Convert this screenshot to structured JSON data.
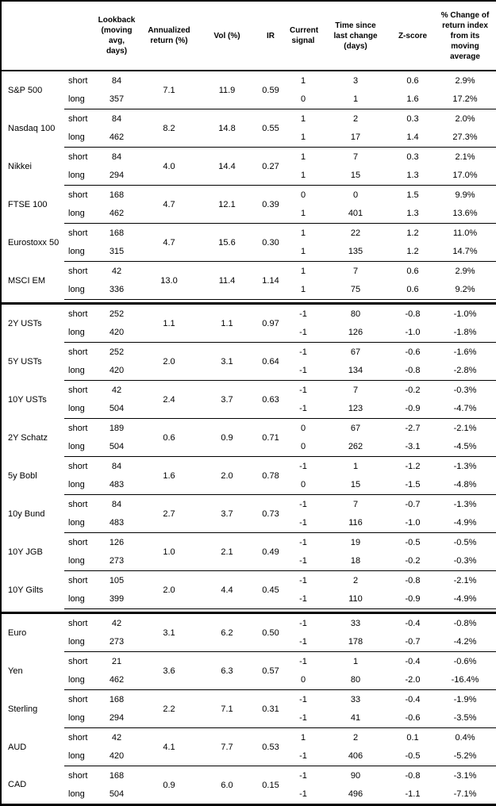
{
  "chart_data": {
    "type": "table",
    "columns": [
      "",
      "",
      "Lookback (moving avg, days)",
      "Annualized return (%)",
      "Vol (%)",
      "IR",
      "Current signal",
      "Time since last change (days)",
      "Z-score",
      "% Change of return index from its moving average"
    ],
    "sections": [
      {
        "id": "equities",
        "assets": [
          {
            "name": "S&P 500",
            "annualized_return": "7.1",
            "vol": "11.9",
            "ir": "0.59",
            "legs": [
              {
                "label": "short",
                "lookback": "84",
                "signal": "1",
                "time_since": "3",
                "z_score": "0.6",
                "pct_change": "2.9%"
              },
              {
                "label": "long",
                "lookback": "357",
                "signal": "0",
                "time_since": "1",
                "z_score": "1.6",
                "pct_change": "17.2%"
              }
            ]
          },
          {
            "name": "Nasdaq 100",
            "annualized_return": "8.2",
            "vol": "14.8",
            "ir": "0.55",
            "legs": [
              {
                "label": "short",
                "lookback": "84",
                "signal": "1",
                "time_since": "2",
                "z_score": "0.3",
                "pct_change": "2.0%"
              },
              {
                "label": "long",
                "lookback": "462",
                "signal": "1",
                "time_since": "17",
                "z_score": "1.4",
                "pct_change": "27.3%"
              }
            ]
          },
          {
            "name": "Nikkei",
            "annualized_return": "4.0",
            "vol": "14.4",
            "ir": "0.27",
            "legs": [
              {
                "label": "short",
                "lookback": "84",
                "signal": "1",
                "time_since": "7",
                "z_score": "0.3",
                "pct_change": "2.1%"
              },
              {
                "label": "long",
                "lookback": "294",
                "signal": "1",
                "time_since": "15",
                "z_score": "1.3",
                "pct_change": "17.0%"
              }
            ]
          },
          {
            "name": "FTSE 100",
            "annualized_return": "4.7",
            "vol": "12.1",
            "ir": "0.39",
            "legs": [
              {
                "label": "short",
                "lookback": "168",
                "signal": "0",
                "time_since": "0",
                "z_score": "1.5",
                "pct_change": "9.9%"
              },
              {
                "label": "long",
                "lookback": "462",
                "signal": "1",
                "time_since": "401",
                "z_score": "1.3",
                "pct_change": "13.6%"
              }
            ]
          },
          {
            "name": "Eurostoxx 50",
            "annualized_return": "4.7",
            "vol": "15.6",
            "ir": "0.30",
            "legs": [
              {
                "label": "short",
                "lookback": "168",
                "signal": "1",
                "time_since": "22",
                "z_score": "1.2",
                "pct_change": "11.0%"
              },
              {
                "label": "long",
                "lookback": "315",
                "signal": "1",
                "time_since": "135",
                "z_score": "1.2",
                "pct_change": "14.7%"
              }
            ]
          },
          {
            "name": "MSCI EM",
            "annualized_return": "13.0",
            "vol": "11.4",
            "ir": "1.14",
            "legs": [
              {
                "label": "short",
                "lookback": "42",
                "signal": "1",
                "time_since": "7",
                "z_score": "0.6",
                "pct_change": "2.9%"
              },
              {
                "label": "long",
                "lookback": "336",
                "signal": "1",
                "time_since": "75",
                "z_score": "0.6",
                "pct_change": "9.2%"
              }
            ]
          }
        ]
      },
      {
        "id": "rates",
        "assets": [
          {
            "name": "2Y USTs",
            "annualized_return": "1.1",
            "vol": "1.1",
            "ir": "0.97",
            "legs": [
              {
                "label": "short",
                "lookback": "252",
                "signal": "-1",
                "time_since": "80",
                "z_score": "-0.8",
                "pct_change": "-1.0%"
              },
              {
                "label": "long",
                "lookback": "420",
                "signal": "-1",
                "time_since": "126",
                "z_score": "-1.0",
                "pct_change": "-1.8%"
              }
            ]
          },
          {
            "name": "5Y USTs",
            "annualized_return": "2.0",
            "vol": "3.1",
            "ir": "0.64",
            "legs": [
              {
                "label": "short",
                "lookback": "252",
                "signal": "-1",
                "time_since": "67",
                "z_score": "-0.6",
                "pct_change": "-1.6%"
              },
              {
                "label": "long",
                "lookback": "420",
                "signal": "-1",
                "time_since": "134",
                "z_score": "-0.8",
                "pct_change": "-2.8%"
              }
            ]
          },
          {
            "name": "10Y USTs",
            "annualized_return": "2.4",
            "vol": "3.7",
            "ir": "0.63",
            "legs": [
              {
                "label": "short",
                "lookback": "42",
                "signal": "-1",
                "time_since": "7",
                "z_score": "-0.2",
                "pct_change": "-0.3%"
              },
              {
                "label": "long",
                "lookback": "504",
                "signal": "-1",
                "time_since": "123",
                "z_score": "-0.9",
                "pct_change": "-4.7%"
              }
            ]
          },
          {
            "name": "2Y Schatz",
            "annualized_return": "0.6",
            "vol": "0.9",
            "ir": "0.71",
            "legs": [
              {
                "label": "short",
                "lookback": "189",
                "signal": "0",
                "time_since": "67",
                "z_score": "-2.7",
                "pct_change": "-2.1%"
              },
              {
                "label": "long",
                "lookback": "504",
                "signal": "0",
                "time_since": "262",
                "z_score": "-3.1",
                "pct_change": "-4.5%"
              }
            ]
          },
          {
            "name": "5y Bobl",
            "annualized_return": "1.6",
            "vol": "2.0",
            "ir": "0.78",
            "legs": [
              {
                "label": "short",
                "lookback": "84",
                "signal": "-1",
                "time_since": "1",
                "z_score": "-1.2",
                "pct_change": "-1.3%"
              },
              {
                "label": "long",
                "lookback": "483",
                "signal": "0",
                "time_since": "15",
                "z_score": "-1.5",
                "pct_change": "-4.8%"
              }
            ]
          },
          {
            "name": "10y Bund",
            "annualized_return": "2.7",
            "vol": "3.7",
            "ir": "0.73",
            "legs": [
              {
                "label": "short",
                "lookback": "84",
                "signal": "-1",
                "time_since": "7",
                "z_score": "-0.7",
                "pct_change": "-1.3%"
              },
              {
                "label": "long",
                "lookback": "483",
                "signal": "-1",
                "time_since": "116",
                "z_score": "-1.0",
                "pct_change": "-4.9%"
              }
            ]
          },
          {
            "name": "10Y JGB",
            "annualized_return": "1.0",
            "vol": "2.1",
            "ir": "0.49",
            "legs": [
              {
                "label": "short",
                "lookback": "126",
                "signal": "-1",
                "time_since": "19",
                "z_score": "-0.5",
                "pct_change": "-0.5%"
              },
              {
                "label": "long",
                "lookback": "273",
                "signal": "-1",
                "time_since": "18",
                "z_score": "-0.2",
                "pct_change": "-0.3%"
              }
            ]
          },
          {
            "name": "10Y Gilts",
            "annualized_return": "2.0",
            "vol": "4.4",
            "ir": "0.45",
            "legs": [
              {
                "label": "short",
                "lookback": "105",
                "signal": "-1",
                "time_since": "2",
                "z_score": "-0.8",
                "pct_change": "-2.1%"
              },
              {
                "label": "long",
                "lookback": "399",
                "signal": "-1",
                "time_since": "110",
                "z_score": "-0.9",
                "pct_change": "-4.9%"
              }
            ]
          }
        ]
      },
      {
        "id": "fx",
        "assets": [
          {
            "name": "Euro",
            "annualized_return": "3.1",
            "vol": "6.2",
            "ir": "0.50",
            "legs": [
              {
                "label": "short",
                "lookback": "42",
                "signal": "-1",
                "time_since": "33",
                "z_score": "-0.4",
                "pct_change": "-0.8%"
              },
              {
                "label": "long",
                "lookback": "273",
                "signal": "-1",
                "time_since": "178",
                "z_score": "-0.7",
                "pct_change": "-4.2%"
              }
            ]
          },
          {
            "name": "Yen",
            "annualized_return": "3.6",
            "vol": "6.3",
            "ir": "0.57",
            "legs": [
              {
                "label": "short",
                "lookback": "21",
                "signal": "-1",
                "time_since": "1",
                "z_score": "-0.4",
                "pct_change": "-0.6%"
              },
              {
                "label": "long",
                "lookback": "462",
                "signal": "0",
                "time_since": "80",
                "z_score": "-2.0",
                "pct_change": "-16.4%"
              }
            ]
          },
          {
            "name": "Sterling",
            "annualized_return": "2.2",
            "vol": "7.1",
            "ir": "0.31",
            "legs": [
              {
                "label": "short",
                "lookback": "168",
                "signal": "-1",
                "time_since": "33",
                "z_score": "-0.4",
                "pct_change": "-1.9%"
              },
              {
                "label": "long",
                "lookback": "294",
                "signal": "-1",
                "time_since": "41",
                "z_score": "-0.6",
                "pct_change": "-3.5%"
              }
            ]
          },
          {
            "name": "AUD",
            "annualized_return": "4.1",
            "vol": "7.7",
            "ir": "0.53",
            "legs": [
              {
                "label": "short",
                "lookback": "42",
                "signal": "1",
                "time_since": "2",
                "z_score": "0.1",
                "pct_change": "0.4%"
              },
              {
                "label": "long",
                "lookback": "420",
                "signal": "-1",
                "time_since": "406",
                "z_score": "-0.5",
                "pct_change": "-5.2%"
              }
            ]
          },
          {
            "name": "CAD",
            "annualized_return": "0.9",
            "vol": "6.0",
            "ir": "0.15",
            "legs": [
              {
                "label": "short",
                "lookback": "168",
                "signal": "-1",
                "time_since": "90",
                "z_score": "-0.8",
                "pct_change": "-3.1%"
              },
              {
                "label": "long",
                "lookback": "504",
                "signal": "-1",
                "time_since": "496",
                "z_score": "-1.1",
                "pct_change": "-7.1%"
              }
            ]
          }
        ]
      }
    ]
  }
}
